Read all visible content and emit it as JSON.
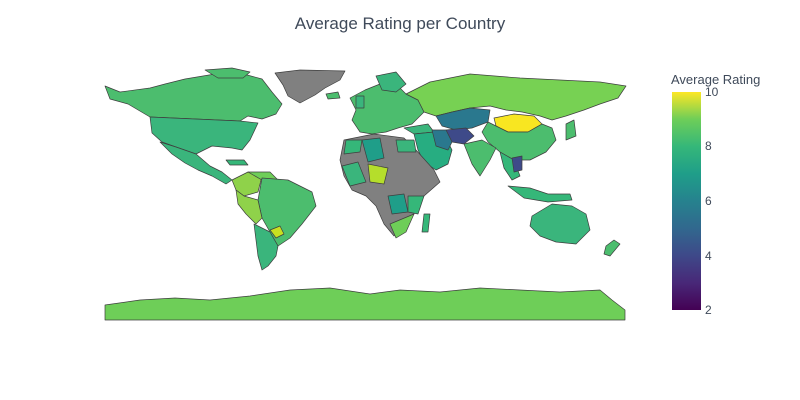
{
  "title": "Average Rating per Country",
  "colorbar": {
    "title": "Average Rating",
    "ticks": [
      "10",
      "8",
      "6",
      "4",
      "2"
    ]
  },
  "chart_data": {
    "type": "choropleth",
    "title": "Average Rating per Country",
    "colorbar_title": "Average Rating",
    "color_range": [
      2,
      10
    ],
    "colorscale": "Viridis",
    "missing_color": "#808080",
    "regions": [
      {
        "name": "Greenland",
        "value": null
      },
      {
        "name": "Canada",
        "value": 8.0
      },
      {
        "name": "United States",
        "value": 7.7
      },
      {
        "name": "Mexico",
        "value": 7.7
      },
      {
        "name": "Brazil",
        "value": 8.0
      },
      {
        "name": "Argentina",
        "value": 7.7
      },
      {
        "name": "Australia",
        "value": 7.7
      },
      {
        "name": "Russia",
        "value": 8.3
      },
      {
        "name": "China",
        "value": 8.0
      },
      {
        "name": "Mongolia",
        "value": 9.7
      },
      {
        "name": "Kazakhstan",
        "value": 6.5
      },
      {
        "name": "Afghanistan",
        "value": 5.5
      },
      {
        "name": "India",
        "value": 7.7
      },
      {
        "name": "Algeria",
        "value": 6.8
      },
      {
        "name": "Mali",
        "value": 8.7
      },
      {
        "name": "Antarctica",
        "value": 8.2
      }
    ]
  }
}
